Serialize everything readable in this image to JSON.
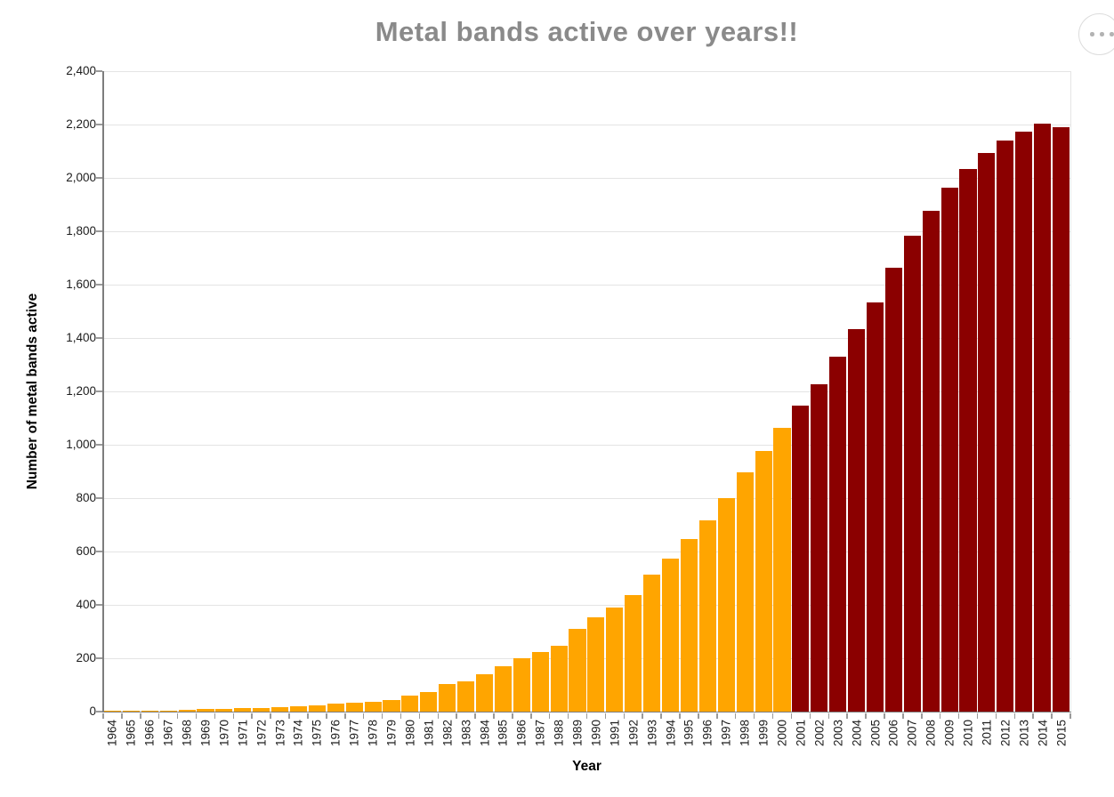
{
  "header": {
    "title": "Metal bands active over years!!",
    "title_color": "#8a8a8a",
    "menu_button": {
      "icon": "ellipsis-icon"
    }
  },
  "chart_data": {
    "type": "bar",
    "title": "Metal bands active over years!!",
    "xlabel": "Year",
    "ylabel": "Number of metal bands active",
    "ylim": [
      0,
      2400
    ],
    "ytick_step": 200,
    "ytick_labels": [
      "0",
      "200",
      "400",
      "600",
      "800",
      "1,000",
      "1,200",
      "1,400",
      "1,600",
      "1,800",
      "2,000",
      "2,200",
      "2,400"
    ],
    "grid": true,
    "legend": false,
    "bar_color_1964_2000": "#FFA500",
    "bar_color_2001_2015": "#8B0000",
    "color_split_year": 2001,
    "categories": [
      "1964",
      "1965",
      "1966",
      "1967",
      "1968",
      "1969",
      "1970",
      "1971",
      "1972",
      "1973",
      "1974",
      "1975",
      "1976",
      "1977",
      "1978",
      "1979",
      "1980",
      "1981",
      "1982",
      "1983",
      "1984",
      "1985",
      "1986",
      "1987",
      "1988",
      "1989",
      "1990",
      "1991",
      "1992",
      "1993",
      "1994",
      "1995",
      "1996",
      "1997",
      "1998",
      "1999",
      "2000",
      "2001",
      "2002",
      "2003",
      "2004",
      "2005",
      "2006",
      "2007",
      "2008",
      "2009",
      "2010",
      "2011",
      "2012",
      "2013",
      "2014",
      "2015"
    ],
    "values": [
      2,
      3,
      4,
      5,
      7,
      9,
      10,
      12,
      14,
      16,
      19,
      22,
      29,
      33,
      37,
      42,
      61,
      74,
      102,
      113,
      140,
      171,
      200,
      225,
      248,
      311,
      352,
      390,
      438,
      512,
      572,
      648,
      716,
      800,
      898,
      978,
      1062,
      1148,
      1226,
      1330,
      1432,
      1534,
      1662,
      1782,
      1878,
      1962,
      2034,
      2092,
      2140,
      2172,
      2205,
      2190
    ]
  },
  "colors": {
    "axis_line": "#7d7d7d",
    "tick_mark": "#9a9a9a",
    "gridline": "#e4e4e4",
    "tick_label": "#1c1c1c"
  }
}
